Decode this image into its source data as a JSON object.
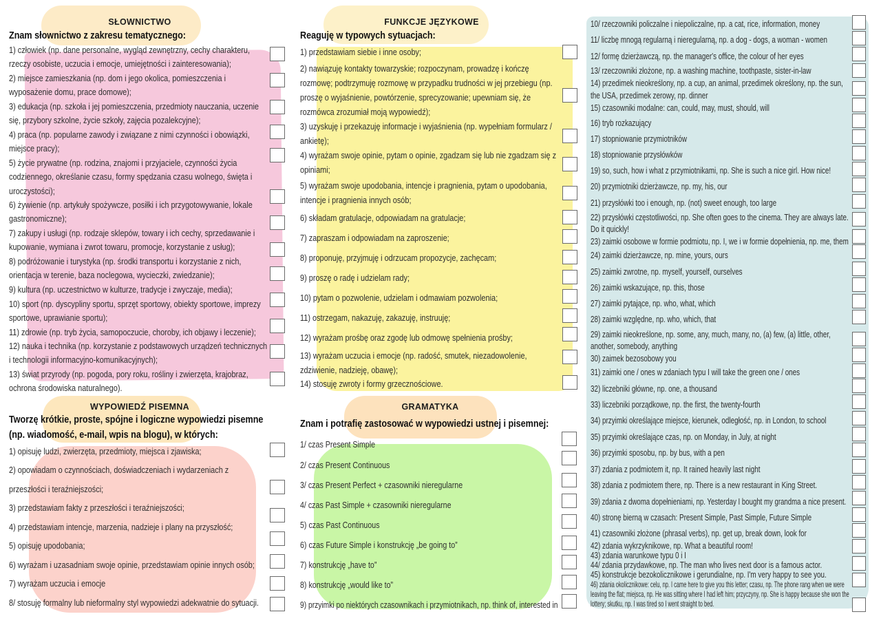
{
  "colors": {
    "vocabulary_bg": "#f6c8dc",
    "functions_bg": "#fbf39e",
    "writing_bg": "#fcd2cb",
    "grammar_bg": "#c9f6a6",
    "grammar_cont_bg": "#d6e9ea",
    "heading_highlight": "#fde7bd"
  },
  "vocabulary": {
    "title": "SŁOWNICTWO",
    "intro": "Znam słownictwo z zakresu tematycznego:",
    "items": [
      "1) człowiek (np. dane personalne, wygląd zewnętrzny, cechy charakteru, rzeczy osobiste, uczucia i emocje, umiejętności i zainteresowania);",
      "2) miejsce zamieszkania (np. dom i jego okolica, pomieszczenia i wyposażenie domu, prace domowe);",
      "3) edukacja (np. szkoła i jej pomieszczenia, przedmioty nauczania, uczenie się, przybory szkolne, życie szkoły, zajęcia pozalekcyjne);",
      "4) praca (np. popularne zawody i związane z nimi czynności i obowiązki, miejsce pracy);",
      "5) życie prywatne (np. rodzina, znajomi i przyjaciele, czynności życia codziennego, określanie czasu, formy spędzania czasu wolnego, święta i uroczystości);",
      "6) żywienie (np. artykuły spożywcze, posiłki i ich przygotowywanie, lokale gastronomiczne);",
      "7) zakupy i usługi (np. rodzaje sklepów, towary i ich cechy, sprzedawanie i kupowanie, wymiana i zwrot towaru, promocje, korzystanie z usług);",
      "8) podróżowanie i turystyka (np. środki transportu i korzystanie z nich, orientacja w terenie, baza noclegowa, wycieczki, zwiedzanie);",
      "9) kultura (np. uczestnictwo w kulturze, tradycje i zwyczaje, media);",
      "10) sport (np. dyscypliny sportu, sprzęt sportowy, obiekty sportowe, imprezy sportowe, uprawianie sportu);",
      "11) zdrowie (np. tryb życia, samopoczucie, choroby, ich objawy i leczenie);",
      "12) nauka i technika (np. korzystanie z podstawowych urządzeń technicznych i technologii informacyjno-komunikacyjnych);",
      "13) świat przyrody (np. pogoda, pory roku, rośliny i zwierzęta, krajobraz, ochrona środowiska naturalnego)."
    ]
  },
  "language_functions": {
    "title": "FUNKCJE JĘZYKOWE",
    "intro": "Reaguję w typowych sytuacjach:",
    "items": [
      "1) przedstawiam siebie i inne osoby;",
      "2) nawiązuję kontakty towarzyskie; rozpoczynam, prowadzę i kończę rozmowę; podtrzymuję rozmowę w przypadku trudności w jej przebiegu (np. proszę o wyjaśnienie, powtórzenie, sprecyzowanie; upewniam się, że rozmówca zrozumiał moją wypowiedź);",
      "3) uzyskuję i przekazuję informacje i wyjaśnienia (np. wypełniam formularz / ankietę);",
      "4) wyrażam swoje opinie, pytam o opinie, zgadzam się lub nie zgadzam się z opiniami;",
      "5) wyrażam swoje upodobania, intencje i pragnienia, pytam o upodobania, intencje i pragnienia innych osób;",
      "6) składam gratulacje, odpowiadam na gratulacje;",
      "7) zapraszam i odpowiadam na zaproszenie;",
      "8) proponuję, przyjmuję i odrzucam propozycje, zachęcam;",
      "9) proszę o radę i udzielam rady;",
      "10) pytam o pozwolenie, udzielam i odmawiam pozwolenia;",
      "11) ostrzegam, nakazuję, zakazuję, instruuję;",
      "12) wyrażam prośbę oraz zgodę lub odmowę spełnienia prośby;",
      "13) wyrażam uczucia i emocje (np. radość, smutek, niezadowolenie, zdziwienie, nadzieję, obawę);",
      "14) stosuję zwroty i formy grzecznościowe."
    ]
  },
  "writing": {
    "title": "WYPOWIEDŹ PISEMNA",
    "intro": "Tworzę krótkie, proste, spójne i logiczne wypowiedzi pisemne (np. wiadomość, e-mail, wpis na blogu), w których:",
    "items": [
      "1) opisuję ludzi, zwierzęta, przedmioty, miejsca i zjawiska;",
      "2) opowiadam o czynnościach, doświadczeniach i wydarzeniach z przeszłości i teraźniejszości;",
      "3) przedstawiam fakty z przeszłości i teraźniejszości;",
      "4) przedstawiam intencje, marzenia, nadzieje i plany na przyszłość;",
      "5) opisuję upodobania;",
      "6) wyrażam i uzasadniam swoje opinie, przedstawiam opinie innych osób;",
      "7) wyrażam uczucia i emocje",
      "8/ stosuję formalny lub nieformalny styl wypowiedzi adekwatnie do sytuacji."
    ]
  },
  "grammar": {
    "title": "GRAMATYKA",
    "intro": "Znam i potrafię zastosować w wypowiedzi ustnej i pisemnej:",
    "items": [
      "1/ czas Present Simple",
      "2/ czas Present Continuous",
      "3/ czas Present Perfect + czasowniki nieregularne",
      "4/ czas Past Simple + czasowniki nieregularne",
      "5) czas Past Continuous",
      "6) czas Future Simple i konstrukcję „be going to”",
      "7) konstrukcję „have to”",
      "8) konstrukcję „would like to”",
      "9) przyimki po niektórych czasownikach i przymiotnikach, np. think of, interested in",
      "10/ rzeczowniki policzalne i niepoliczalne, np. a cat, rice, information, money",
      "11/ liczbę mnogą regularną i nieregularną, np. a dog - dogs, a woman - women",
      "12/ formę dzierżawczą, np. the manager's office, the colour of her eyes",
      "13/ rzeczowniki złożone, np. a washing machine, toothpaste, sister-in-law",
      "14) przedimek nieokreślony, np. a cup, an animal, przedimek określony, np. the sun, the USA, przedimek zerowy, np. dinner",
      "15) czasowniki modalne: can, could, may, must, should, will",
      "16) tryb rozkazujący",
      "17) stopniowanie przymiotników",
      "18) stopniowanie przysłówków",
      "19) so, such, how i what z przymiotnikami, np. She is such a nice girl. How nice!",
      "20) przymiotniki dzierżawcze, np. my, his, our",
      "21) przysłówki too i enough, np. (not) sweet enough, too large",
      "22) przysłówki częstotliwości, np. She often goes to the cinema. They are always late. Do it quickly!",
      "23) zaimki osobowe w formie podmiotu, np. I, we i w formie dopełnienia, np. me, them",
      "24) zaimki dzierżawcze, np. mine, yours, ours",
      "25) zaimki zwrotne, np. myself, yourself, ourselves",
      "26) zaimki wskazujące, np. this, those",
      "27) zaimki pytające, np. who, what, which",
      "28) zaimki względne, np. who, which, that",
      "29) zaimki nieokreślone, np. some, any, much, many, no, (a) few, (a) little, other, another, somebody, anything",
      "30) zaimek bezosobowy you",
      "31) zaimki one / ones w zdaniach typu I will take the green one / ones",
      "32) liczebniki główne, np. one, a thousand",
      "33) liczebniki porządkowe, np. the first, the twenty-fourth",
      "34) przyimki określające miejsce, kierunek, odległość, np. in London, to school",
      "35) przyimki określające czas, np. on Monday, in July, at night",
      "36) przyimki sposobu, np. by bus, with a pen",
      "37) zdania z podmiotem it, np. It rained heavily last night",
      "38) zdania z podmiotem there, np. There is a new restaurant in King Street.",
      "39) zdania z dwoma dopełnieniami, np. Yesterday I bought my grandma a nice present.",
      "40) stronę bierną w czasach: Present Simple, Past Simple, Future Simple",
      "41) czasowniki złożone (phrasal verbs), np. get up, break down, look for",
      "42) zdania wykrzyknikowe, np. What a beautiful room!",
      "43) zdania warunkowe typu 0 i I",
      "44/ zdania przydawkowe, np. The man who lives next door is a famous actor.",
      "45) konstrukcje bezokolicznikowe i gerundialne, np. I'm very happy to see you.",
      "46) zdania okolicznikowe: celu, np. I came here to give you this letter; czasu, np. The phone rang when we were leaving the flat; miejsca, np. He was sitting where I had left him; przyczyny, np. She is happy because she won the lottery; skutku, np. I was tired so I went straight to bed."
    ]
  }
}
